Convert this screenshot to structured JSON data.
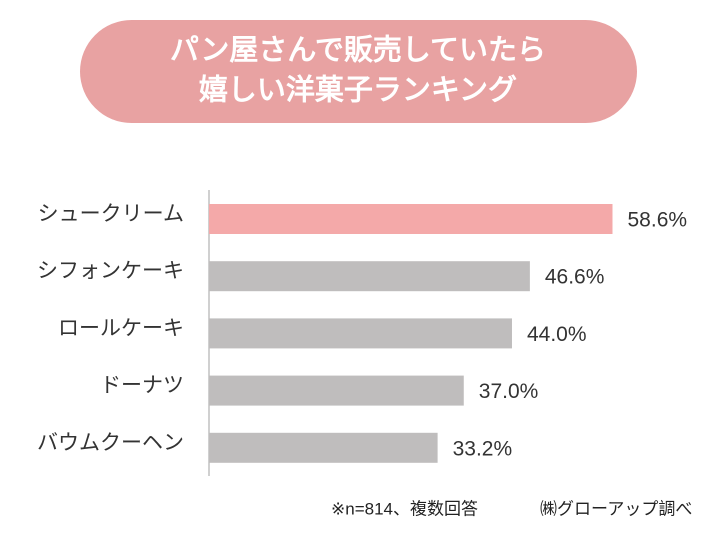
{
  "chart_data": {
    "type": "bar",
    "orientation": "horizontal",
    "title": [
      "パン屋さんで販売していたら",
      "嬉しい洋菓子ランキング"
    ],
    "categories": [
      "シュークリーム",
      "シフォンケーキ",
      "ロールケーキ",
      "ドーナツ",
      "バウムクーヘン"
    ],
    "values": [
      58.6,
      46.6,
      44.0,
      37.0,
      33.2
    ],
    "value_labels": [
      "58.6%",
      "46.6%",
      "44.0%",
      "37.0%",
      "33.2%"
    ],
    "colors": [
      "#f4a9a9",
      "#bfbdbd",
      "#bfbdbd",
      "#bfbdbd",
      "#bfbdbd"
    ],
    "xlim": [
      0,
      70
    ],
    "notes": [
      "※n=814、複数回答",
      "㈱グローアップ調べ"
    ]
  }
}
